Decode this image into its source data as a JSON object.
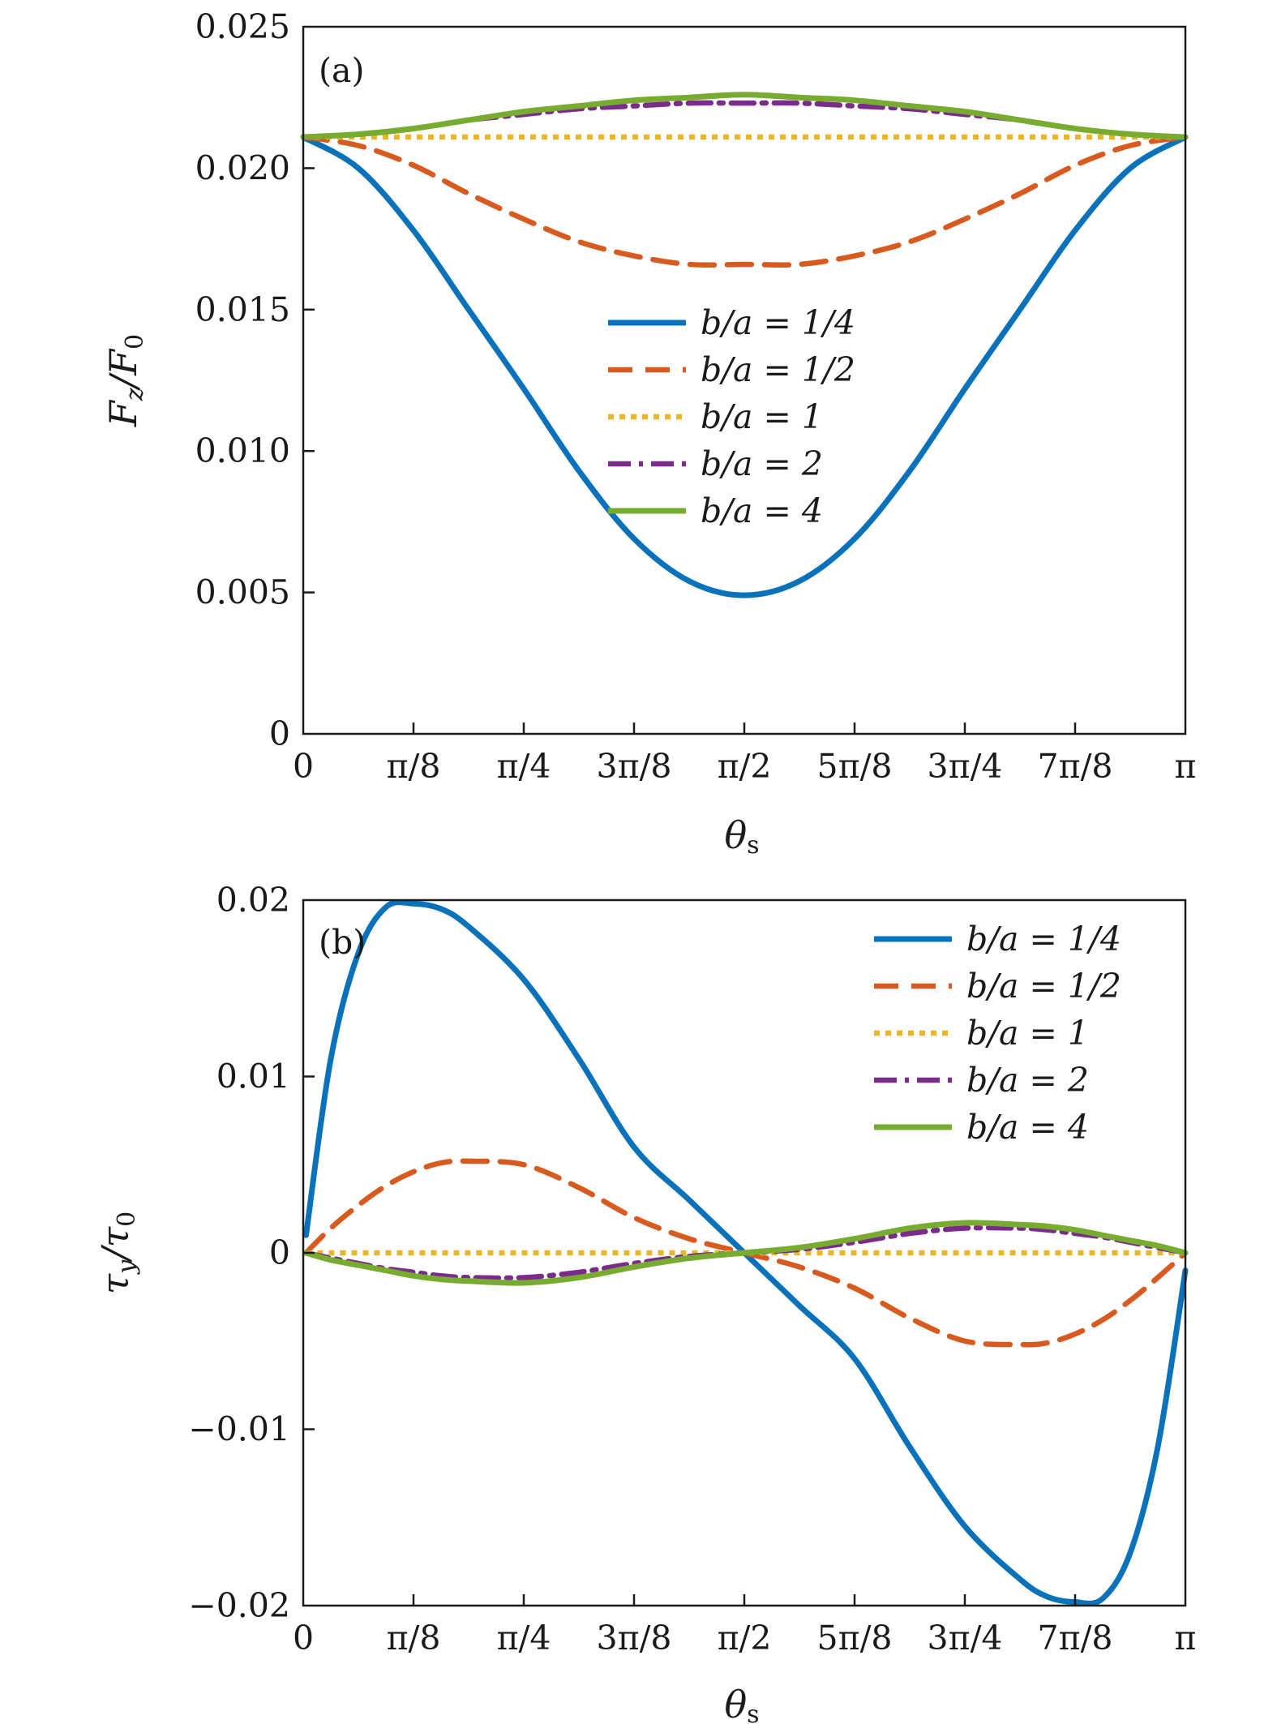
{
  "colors": {
    "b/a = 1/4": "#0a72bb",
    "b/a = 1/2": "#d85a1f",
    "b/a = 1": "#e9b628",
    "b/a = 2": "#7b2b8c",
    "b/a = 4": "#77ac30",
    "axis": "#1a1a1a"
  },
  "chart_data": [
    {
      "type": "line",
      "panel_label": "(a)",
      "xlabel": "θs",
      "ylabel": "Fz/F0",
      "xlim": [
        0,
        3.14159265
      ],
      "ylim": [
        0,
        0.025
      ],
      "x_ticks": [
        0,
        0.39269908,
        0.78539816,
        1.17809725,
        1.57079633,
        1.96349541,
        2.35619449,
        2.74889357,
        3.14159265
      ],
      "x_tick_labels": [
        "0",
        "π/8",
        "π/4",
        "3π/8",
        "π/2",
        "5π/8",
        "3π/4",
        "7π/8",
        "π"
      ],
      "y_ticks": [
        0,
        0.005,
        0.01,
        0.015,
        0.02,
        0.025
      ],
      "y_tick_labels": [
        "0",
        "0.005",
        "0.010",
        "0.015",
        "0.020",
        "0.025"
      ],
      "legend_position": "center-right",
      "x": [
        0,
        0.19634954,
        0.39269908,
        0.58904862,
        0.78539816,
        0.9817477,
        1.17809725,
        1.37444679,
        1.57079633,
        1.76714587,
        1.96349541,
        2.15984495,
        2.35619449,
        2.55254403,
        2.74889357,
        2.94524311,
        3.14159265
      ],
      "series": [
        {
          "name": "b/a = 1/4",
          "style": "solid",
          "values": [
            0.0211,
            0.02,
            0.0178,
            0.015,
            0.0122,
            0.0093,
            0.0069,
            0.0054,
            0.0049,
            0.0054,
            0.0069,
            0.0093,
            0.0122,
            0.015,
            0.0178,
            0.02,
            0.0211
          ]
        },
        {
          "name": "b/a = 1/2",
          "style": "dashed",
          "values": [
            0.0211,
            0.0208,
            0.0201,
            0.0191,
            0.0182,
            0.0174,
            0.0169,
            0.0166,
            0.0166,
            0.0166,
            0.0169,
            0.0174,
            0.0182,
            0.0191,
            0.0201,
            0.0208,
            0.0211
          ]
        },
        {
          "name": "b/a = 1",
          "style": "dotted",
          "values": [
            0.0211,
            0.0211,
            0.0211,
            0.0211,
            0.0211,
            0.0211,
            0.0211,
            0.0211,
            0.0211,
            0.0211,
            0.0211,
            0.0211,
            0.0211,
            0.0211,
            0.0211,
            0.0211,
            0.0211
          ]
        },
        {
          "name": "b/a = 2",
          "style": "dashdot",
          "values": [
            0.0211,
            0.0212,
            0.0214,
            0.0217,
            0.0219,
            0.0221,
            0.0222,
            0.0223,
            0.0223,
            0.0223,
            0.0222,
            0.0221,
            0.0219,
            0.0217,
            0.0214,
            0.0212,
            0.0211
          ]
        },
        {
          "name": "b/a = 4",
          "style": "solid",
          "values": [
            0.0211,
            0.0212,
            0.0214,
            0.0217,
            0.022,
            0.0222,
            0.0224,
            0.0225,
            0.0226,
            0.0225,
            0.0224,
            0.0222,
            0.022,
            0.0217,
            0.0214,
            0.0212,
            0.0211
          ]
        }
      ]
    },
    {
      "type": "line",
      "panel_label": "(b)",
      "xlabel": "θs",
      "ylabel": "τy/τ0",
      "xlim": [
        0,
        3.14159265
      ],
      "ylim": [
        -0.02,
        0.02
      ],
      "x_ticks": [
        0,
        0.39269908,
        0.78539816,
        1.17809725,
        1.57079633,
        1.96349541,
        2.35619449,
        2.74889357,
        3.14159265
      ],
      "x_tick_labels": [
        "0",
        "π/8",
        "π/4",
        "3π/8",
        "π/2",
        "5π/8",
        "3π/4",
        "7π/8",
        "π"
      ],
      "y_ticks": [
        -0.02,
        -0.01,
        0,
        0.01,
        0.02
      ],
      "y_tick_labels": [
        "−0.02",
        "−0.01",
        "0",
        "0.01",
        "0.02"
      ],
      "legend_position": "top-right",
      "x": [
        0.01,
        0.09817477,
        0.19634954,
        0.29452431,
        0.39269908,
        0.49087385,
        0.58904862,
        0.78539816,
        0.9817477,
        1.17809725,
        1.37444679,
        1.57079633,
        1.76714587,
        1.96349541,
        2.15984495,
        2.35619449,
        2.55254403,
        2.6507188,
        2.74889357,
        2.84706834,
        2.94524311,
        3.04341788,
        3.14159265
      ],
      "series": [
        {
          "name": "b/a = 1/4",
          "style": "solid",
          "values": [
            0.001,
            0.011,
            0.017,
            0.0196,
            0.0198,
            0.0195,
            0.0185,
            0.0155,
            0.011,
            0.006,
            0.003,
            0.0,
            -0.003,
            -0.006,
            -0.011,
            -0.0155,
            -0.0185,
            -0.0195,
            -0.0198,
            -0.0196,
            -0.017,
            -0.011,
            -0.001
          ]
        },
        {
          "name": "b/a = 1/2",
          "style": "dashed",
          "values": [
            0.0,
            0.0014,
            0.0027,
            0.0038,
            0.0046,
            0.0051,
            0.0052,
            0.005,
            0.0037,
            0.002,
            0.0008,
            0.0,
            -0.0008,
            -0.002,
            -0.0037,
            -0.005,
            -0.0052,
            -0.0051,
            -0.0046,
            -0.0038,
            -0.0027,
            -0.0014,
            0.0
          ]
        },
        {
          "name": "b/a = 1",
          "style": "dotted",
          "values": [
            0,
            0,
            0,
            0,
            0,
            0,
            0,
            0,
            0,
            0,
            0,
            0,
            0,
            0,
            0,
            0,
            0,
            0,
            0,
            0,
            0,
            0,
            0
          ]
        },
        {
          "name": "b/a = 2",
          "style": "dashdot",
          "values": [
            0.0,
            -0.0003,
            -0.0006,
            -0.0009,
            -0.0011,
            -0.0013,
            -0.0014,
            -0.0014,
            -0.0011,
            -0.0006,
            -0.0002,
            0.0,
            0.0002,
            0.0006,
            0.0011,
            0.0014,
            0.0014,
            0.0013,
            0.0011,
            0.0009,
            0.0006,
            0.0003,
            0.0
          ]
        },
        {
          "name": "b/a = 4",
          "style": "solid",
          "values": [
            0.0,
            -0.0004,
            -0.0007,
            -0.001,
            -0.0013,
            -0.0015,
            -0.0016,
            -0.0017,
            -0.0014,
            -0.0008,
            -0.0003,
            0.0,
            0.0003,
            0.0008,
            0.0014,
            0.0017,
            0.0016,
            0.0015,
            0.0013,
            0.001,
            0.0007,
            0.0004,
            0.0
          ]
        }
      ]
    }
  ]
}
